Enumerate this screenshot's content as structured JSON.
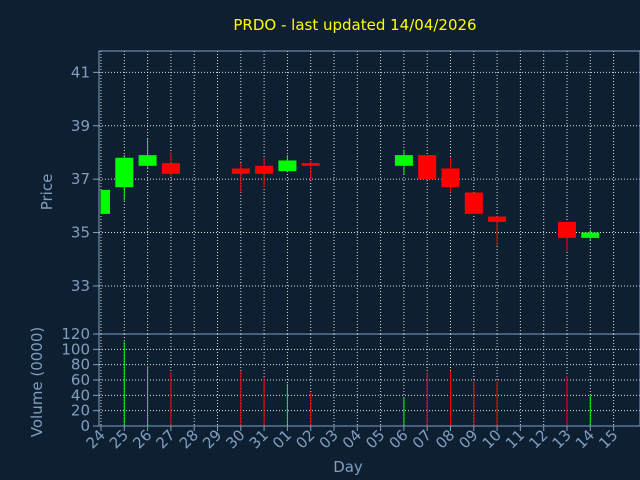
{
  "chart_data": [
    {
      "type": "candlestick",
      "title": "PRDO - last updated 14/04/2026",
      "ylabel": "Price",
      "ylim": [
        31.2,
        41.8
      ],
      "yticks": [
        33,
        35,
        37,
        39,
        41
      ],
      "grid": true,
      "colors": {
        "up": "#00ff00",
        "down": "#ff0000",
        "background": "#0f1f32",
        "axis": "#7f9fbf",
        "title": "#ffff00"
      },
      "candles": [
        {
          "day": "24",
          "open": 35.7,
          "high": 36.6,
          "low": 35.7,
          "close": 36.6
        },
        {
          "day": "25",
          "open": 36.7,
          "high": 37.9,
          "low": 36.2,
          "close": 37.8
        },
        {
          "day": "26",
          "open": 37.5,
          "high": 38.5,
          "low": 37.4,
          "close": 37.9
        },
        {
          "day": "27",
          "open": 37.6,
          "high": 38.0,
          "low": 37.1,
          "close": 37.2
        },
        {
          "day": "30",
          "open": 37.4,
          "high": 37.6,
          "low": 36.5,
          "close": 37.2
        },
        {
          "day": "31",
          "open": 37.5,
          "high": 37.8,
          "low": 36.7,
          "close": 37.2
        },
        {
          "day": "01",
          "open": 37.3,
          "high": 37.9,
          "low": 37.3,
          "close": 37.7
        },
        {
          "day": "02",
          "open": 37.6,
          "high": 37.7,
          "low": 37.0,
          "close": 37.5
        },
        {
          "day": "06",
          "open": 37.5,
          "high": 38.1,
          "low": 37.2,
          "close": 37.9
        },
        {
          "day": "07",
          "open": 37.9,
          "high": 37.9,
          "low": 37.0,
          "close": 37.0
        },
        {
          "day": "08",
          "open": 37.4,
          "high": 37.8,
          "low": 36.5,
          "close": 36.7
        },
        {
          "day": "09",
          "open": 36.5,
          "high": 36.5,
          "low": 35.7,
          "close": 35.7
        },
        {
          "day": "10",
          "open": 35.6,
          "high": 35.6,
          "low": 34.5,
          "close": 35.4
        },
        {
          "day": "13",
          "open": 35.4,
          "high": 35.4,
          "low": 34.3,
          "close": 34.8
        },
        {
          "day": "14",
          "open": 34.8,
          "high": 35.1,
          "low": 34.7,
          "close": 35.0
        }
      ]
    },
    {
      "type": "bar",
      "ylabel": "Volume (0000)",
      "ylim": [
        0,
        120
      ],
      "yticks": [
        0,
        20,
        40,
        60,
        80,
        100,
        120
      ],
      "xlabel": "Day",
      "categories": [
        "24",
        "25",
        "26",
        "27",
        "28",
        "29",
        "30",
        "31",
        "01",
        "02",
        "03",
        "04",
        "05",
        "06",
        "07",
        "08",
        "09",
        "10",
        "11",
        "12",
        "13",
        "14",
        "15"
      ],
      "values": [
        0,
        110,
        78,
        70,
        0,
        0,
        72,
        63,
        55,
        43,
        0,
        0,
        0,
        37,
        70,
        72,
        58,
        58,
        0,
        0,
        65,
        40,
        0
      ],
      "direction": [
        "",
        "up",
        "up",
        "down",
        "",
        "",
        "down",
        "down",
        "up",
        "down",
        "",
        "",
        "",
        "up",
        "down",
        "down",
        "down",
        "down",
        "",
        "",
        "down",
        "up",
        ""
      ]
    }
  ]
}
